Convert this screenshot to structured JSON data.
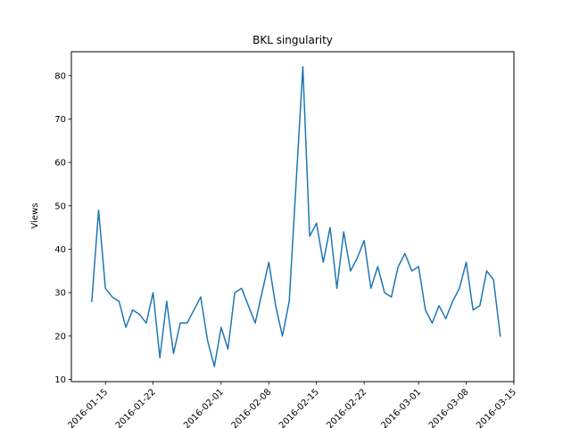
{
  "chart_data": {
    "type": "line",
    "title": "BKL singularity",
    "xlabel": "",
    "ylabel": "Views",
    "x_is_date": true,
    "xlim": [
      "2016-01-10",
      "2016-03-15"
    ],
    "ylim": [
      9.5,
      85.5
    ],
    "y_ticks": [
      10,
      20,
      30,
      40,
      50,
      60,
      70,
      80
    ],
    "x_ticks": [
      "2016-01-15",
      "2016-01-22",
      "2016-02-01",
      "2016-02-08",
      "2016-02-15",
      "2016-02-22",
      "2016-03-01",
      "2016-03-08",
      "2016-03-15"
    ],
    "x_tick_labels": [
      "2016-01-15",
      "2016-01-22",
      "2016-02-01",
      "2016-02-08",
      "2016-02-15",
      "2016-02-22",
      "2016-03-01",
      "2016-03-08",
      "2016-03-15"
    ],
    "grid": false,
    "colors": {
      "line": "#1f77b4"
    },
    "series": [
      {
        "x": [
          "2016-01-13",
          "2016-01-14",
          "2016-01-15",
          "2016-01-16",
          "2016-01-17",
          "2016-01-18",
          "2016-01-19",
          "2016-01-20",
          "2016-01-21",
          "2016-01-22",
          "2016-01-23",
          "2016-01-24",
          "2016-01-25",
          "2016-01-26",
          "2016-01-27",
          "2016-01-28",
          "2016-01-29",
          "2016-01-30",
          "2016-01-31",
          "2016-02-01",
          "2016-02-02",
          "2016-02-03",
          "2016-02-04",
          "2016-02-05",
          "2016-02-06",
          "2016-02-07",
          "2016-02-08",
          "2016-02-09",
          "2016-02-10",
          "2016-02-11",
          "2016-02-12",
          "2016-02-13",
          "2016-02-14",
          "2016-02-15",
          "2016-02-16",
          "2016-02-17",
          "2016-02-18",
          "2016-02-19",
          "2016-02-20",
          "2016-02-21",
          "2016-02-22",
          "2016-02-23",
          "2016-02-24",
          "2016-02-25",
          "2016-02-26",
          "2016-02-27",
          "2016-02-28",
          "2016-02-29",
          "2016-03-01",
          "2016-03-02",
          "2016-03-03",
          "2016-03-04",
          "2016-03-05",
          "2016-03-06",
          "2016-03-07",
          "2016-03-08",
          "2016-03-09",
          "2016-03-10",
          "2016-03-11",
          "2016-03-12",
          "2016-03-13"
        ],
        "values": [
          28,
          49,
          31,
          29,
          28,
          22,
          26,
          25,
          23,
          30,
          15,
          28,
          16,
          23,
          23,
          26,
          29,
          19,
          13,
          22,
          17,
          30,
          31,
          27,
          23,
          30,
          37,
          27,
          20,
          28,
          55,
          82,
          43,
          46,
          37,
          45,
          31,
          44,
          35,
          38,
          42,
          31,
          36,
          30,
          29,
          36,
          39,
          35,
          36,
          26,
          23,
          27,
          24,
          28,
          31,
          37,
          26,
          27,
          35,
          33,
          20
        ]
      }
    ]
  }
}
